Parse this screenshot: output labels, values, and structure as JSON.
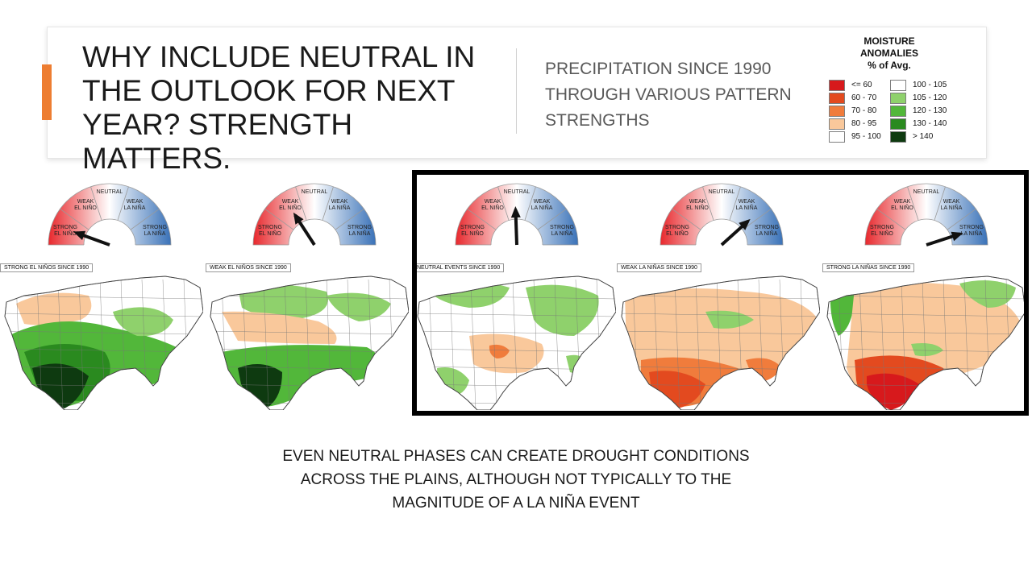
{
  "header": {
    "title_lines": [
      "WHY INCLUDE NEUTRAL IN",
      "THE OUTLOOK FOR NEXT",
      "YEAR? STRENGTH MATTERS."
    ],
    "subtitle_lines": [
      "PRECIPITATION SINCE 1990",
      "THROUGH VARIOUS PATTERN",
      "STRENGTHS"
    ],
    "accent_color": "#ed7d31"
  },
  "legend": {
    "title_lines": [
      "MOISTURE",
      "ANOMALIES",
      "% of Avg."
    ],
    "left_items": [
      {
        "label": "<= 60",
        "color": "#d7191c"
      },
      {
        "label": "60 - 70",
        "color": "#e34a1f"
      },
      {
        "label": "70 - 80",
        "color": "#f07c3c"
      },
      {
        "label": "80 - 95",
        "color": "#f9c89b"
      },
      {
        "label": "95 - 100",
        "color": "#ffffff"
      }
    ],
    "right_items": [
      {
        "label": "100 - 105",
        "color": "#ffffff"
      },
      {
        "label": "105 - 120",
        "color": "#8fd16c"
      },
      {
        "label": "120 - 130",
        "color": "#52b73a"
      },
      {
        "label": "130 - 140",
        "color": "#2a8a1f"
      },
      {
        "label": "> 140",
        "color": "#0e3a10"
      }
    ]
  },
  "gauge_labels": {
    "neutral": "NEUTRAL",
    "weak_nino": [
      "WEAK",
      "EL NIÑO"
    ],
    "strong_nino": [
      "STRONG",
      "EL NIÑO"
    ],
    "weak_nina": [
      "WEAK",
      "LA NIÑA"
    ],
    "strong_nina": [
      "STRONG",
      "LA NIÑA"
    ]
  },
  "panels": [
    {
      "label": "STRONG EL NIÑOS SINCE 1990",
      "pointer": "strong-el-nino"
    },
    {
      "label": "WEAK EL NIÑOS SINCE 1990",
      "pointer": "weak-el-nino"
    },
    {
      "label": "NEUTRAL EVENTS SINCE 1990",
      "pointer": "neutral"
    },
    {
      "label": "WEAK LA NIÑAS SINCE 1990",
      "pointer": "weak-la-nina"
    },
    {
      "label": "STRONG LA NIÑAS SINCE 1990",
      "pointer": "strong-la-nina"
    }
  ],
  "caption_lines": [
    "EVEN NEUTRAL PHASES CAN CREATE DROUGHT CONDITIONS",
    "ACROSS THE PLAINS, ALTHOUGH NOT TYPICALLY TO THE",
    "MAGNITUDE OF A LA NIÑA EVENT"
  ]
}
